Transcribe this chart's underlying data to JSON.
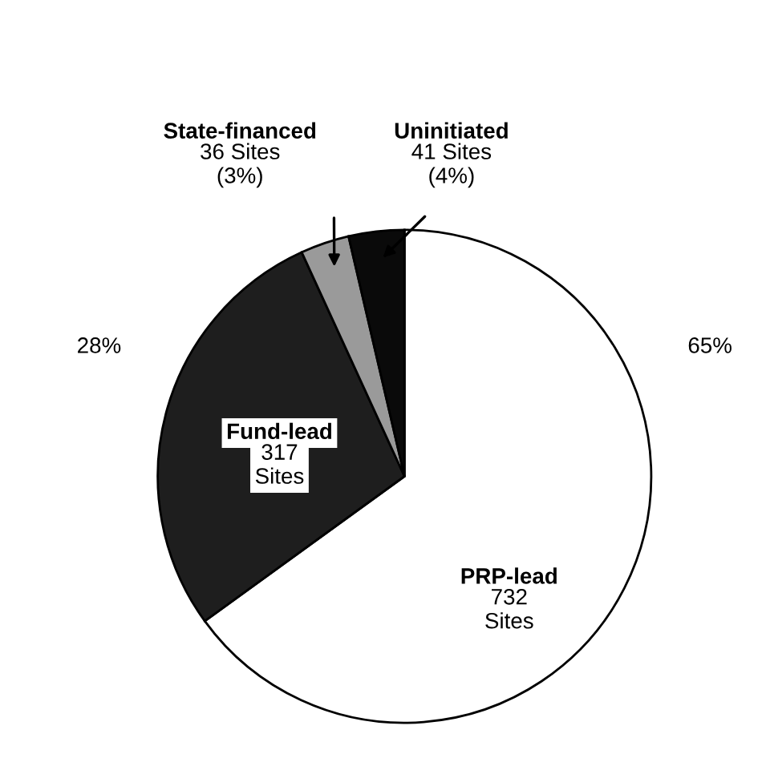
{
  "chart_data": {
    "type": "pie",
    "categories": [
      "PRP-lead",
      "Fund-lead",
      "State-financed",
      "Uninitiated"
    ],
    "values": [
      732,
      317,
      36,
      41
    ],
    "colors": [
      "#ffffff",
      "#1e1e1e",
      "#9a9a9a",
      "#0a0a0a"
    ],
    "value_labels": [
      "732\nSites",
      "317\nSites",
      "36 Sites\n(3%)",
      "41 Sites\n(4%)"
    ],
    "annotations": [
      "65%",
      "28%"
    ]
  }
}
